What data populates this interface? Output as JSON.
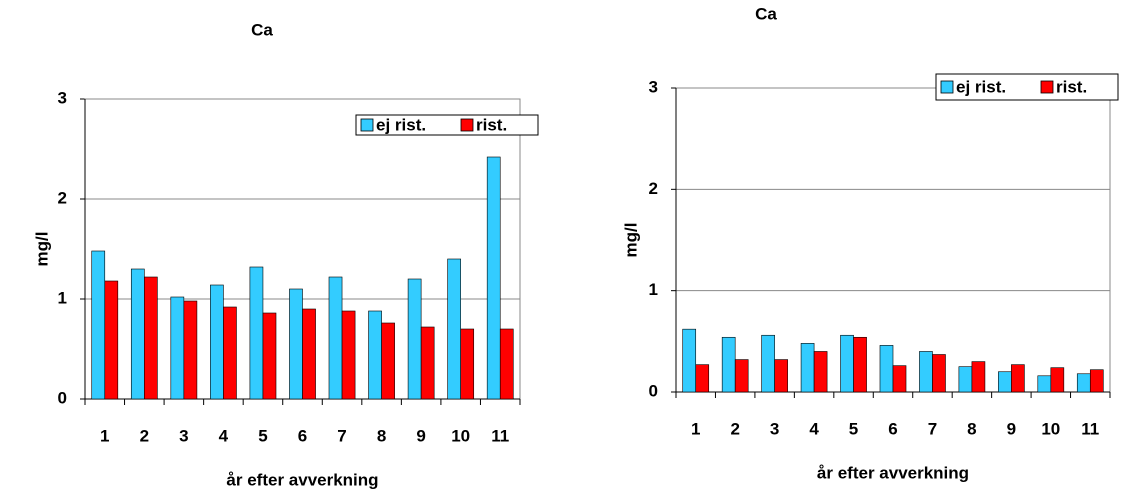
{
  "chart_data": [
    {
      "type": "bar",
      "title": "Ca",
      "y_label": "mg/l",
      "x_label": "år efter avverkning",
      "categories": [
        "1",
        "2",
        "3",
        "4",
        "5",
        "6",
        "7",
        "8",
        "9",
        "10",
        "11"
      ],
      "series": [
        {
          "name": "ej rist.",
          "color": "#33ccff",
          "values": [
            1.48,
            1.3,
            1.02,
            1.14,
            1.32,
            1.1,
            1.22,
            0.88,
            1.2,
            1.4,
            2.42
          ]
        },
        {
          "name": "rist.",
          "color": "#ff0000",
          "values": [
            1.18,
            1.22,
            0.98,
            0.92,
            0.86,
            0.9,
            0.88,
            0.76,
            0.72,
            0.7,
            0.7
          ]
        }
      ],
      "ylim": [
        0,
        3
      ],
      "yticks": [
        0,
        1,
        2,
        3
      ],
      "grid": true,
      "legend": "upper right"
    },
    {
      "type": "bar",
      "title": "Ca",
      "y_label": "mg/l",
      "x_label": "år efter avverkning",
      "categories": [
        "1",
        "2",
        "3",
        "4",
        "5",
        "6",
        "7",
        "8",
        "9",
        "10",
        "11"
      ],
      "series": [
        {
          "name": "ej rist.",
          "color": "#33ccff",
          "values": [
            0.62,
            0.54,
            0.56,
            0.48,
            0.56,
            0.46,
            0.4,
            0.25,
            0.2,
            0.16,
            0.18
          ]
        },
        {
          "name": "rist.",
          "color": "#ff0000",
          "values": [
            0.27,
            0.32,
            0.32,
            0.4,
            0.54,
            0.26,
            0.37,
            0.3,
            0.27,
            0.24,
            0.22
          ]
        }
      ],
      "ylim": [
        0,
        3
      ],
      "yticks": [
        0,
        1,
        2,
        3
      ],
      "grid": true,
      "legend": "upper right"
    }
  ]
}
